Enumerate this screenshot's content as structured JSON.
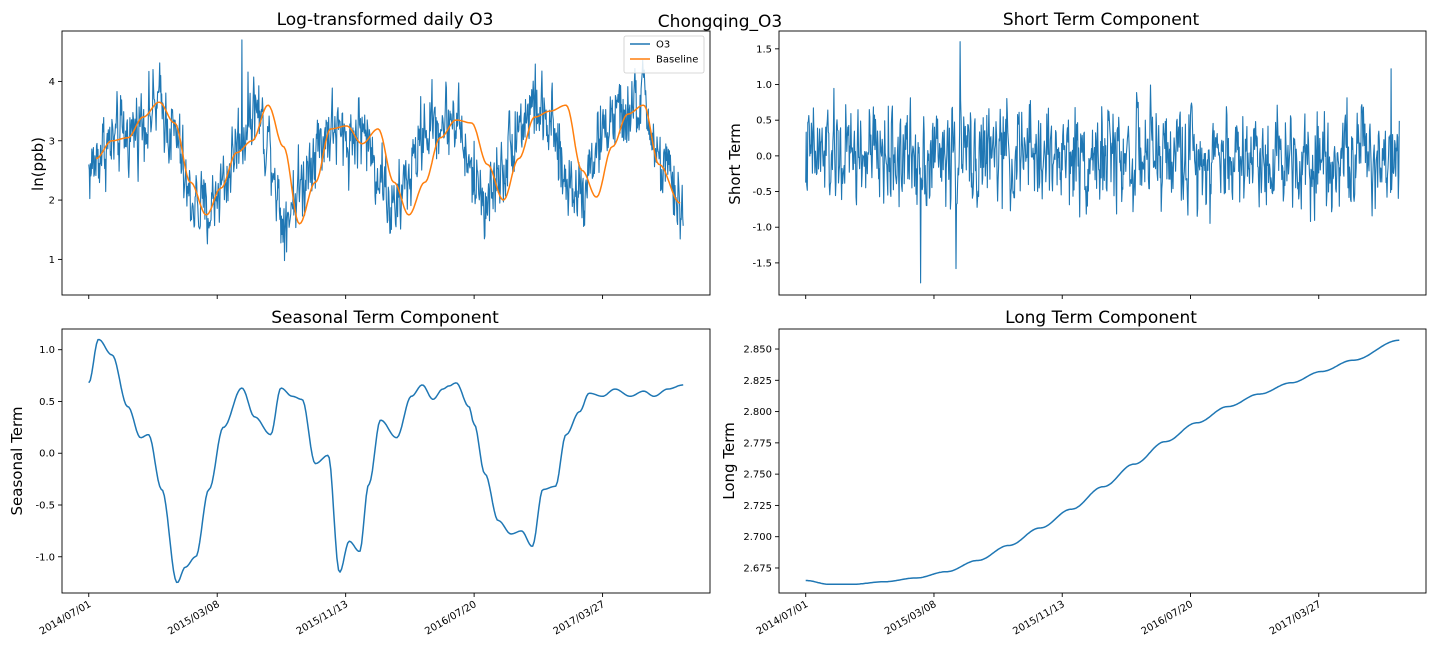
{
  "suptitle": "Chongqing_O3",
  "x_ticks": [
    "2014/07/01",
    "2015/03/08",
    "2015/11/13",
    "2016/07/20",
    "2017/03/27"
  ],
  "colors": {
    "o3": "#1f77b4",
    "baseline": "#ff7f0e"
  },
  "chart_data": [
    {
      "type": "line",
      "title": "Log-transformed daily O3",
      "ylabel": "ln(ppb)",
      "xlabel": "",
      "x_range": [
        "2014/07/01",
        "2017/08/31"
      ],
      "ylim": [
        0.4,
        4.85
      ],
      "y_ticks": [
        1,
        2,
        3,
        4
      ],
      "legend": {
        "placement": "top-right",
        "entries": [
          "O3",
          "Baseline"
        ]
      },
      "series": [
        {
          "name": "O3",
          "kind": "noisy_daily",
          "x": [
            "2014/07/01",
            "2014/08/01",
            "2014/09/15",
            "2014/10/20",
            "2014/11/15",
            "2014/12/15",
            "2015/01/15",
            "2015/02/15",
            "2015/03/20",
            "2015/04/20",
            "2015/05/20",
            "2015/06/15",
            "2015/07/15",
            "2015/08/15",
            "2015/09/15",
            "2015/10/15",
            "2015/11/15",
            "2015/12/15",
            "2016/01/15",
            "2016/02/15",
            "2016/03/15",
            "2016/04/15",
            "2016/05/15",
            "2016/06/15",
            "2016/07/15",
            "2016/08/15",
            "2016/09/15",
            "2016/10/15",
            "2016/11/15",
            "2016/12/15",
            "2017/01/15",
            "2017/02/15",
            "2017/03/15",
            "2017/04/15",
            "2017/05/15",
            "2017/06/15",
            "2017/07/15",
            "2017/08/31"
          ],
          "values": [
            2.5,
            2.9,
            3.1,
            3.4,
            3.6,
            3.1,
            2.0,
            1.8,
            2.3,
            3.0,
            3.6,
            3.0,
            1.7,
            2.2,
            2.9,
            3.2,
            3.0,
            3.2,
            2.5,
            1.8,
            2.4,
            3.2,
            3.3,
            3.4,
            2.4,
            2.0,
            2.6,
            3.3,
            3.6,
            3.2,
            2.3,
            2.2,
            2.9,
            3.4,
            3.4,
            3.7,
            2.6,
            1.9
          ],
          "spread": 0.45,
          "peak": {
            "x": "2015/04/25",
            "y": 4.7
          }
        },
        {
          "name": "Baseline",
          "x": [
            "2014/07/15",
            "2014/08/15",
            "2014/09/15",
            "2014/10/15",
            "2014/11/15",
            "2014/12/15",
            "2015/01/15",
            "2015/02/15",
            "2015/03/15",
            "2015/04/15",
            "2015/05/15",
            "2015/06/15",
            "2015/07/15",
            "2015/08/15",
            "2015/09/15",
            "2015/10/15",
            "2015/11/15",
            "2015/12/15",
            "2016/01/15",
            "2016/02/15",
            "2016/03/15",
            "2016/04/15",
            "2016/05/15",
            "2016/06/15",
            "2016/07/15",
            "2016/08/15",
            "2016/09/15",
            "2016/10/15",
            "2016/11/15",
            "2016/12/15",
            "2017/01/15",
            "2017/02/15",
            "2017/03/15",
            "2017/04/15",
            "2017/05/15",
            "2017/06/15",
            "2017/07/15",
            "2017/08/25"
          ],
          "values": [
            2.7,
            3.0,
            3.05,
            3.4,
            3.65,
            3.3,
            2.3,
            1.75,
            2.2,
            2.8,
            3.0,
            3.6,
            2.9,
            1.6,
            2.3,
            3.2,
            3.25,
            2.95,
            3.2,
            2.3,
            1.75,
            2.3,
            3.05,
            3.35,
            3.3,
            2.6,
            2.0,
            2.7,
            3.4,
            3.5,
            3.6,
            2.5,
            2.05,
            2.9,
            3.45,
            3.6,
            2.6,
            1.95
          ]
        }
      ]
    },
    {
      "type": "line",
      "title": "Short Term Component",
      "ylabel": "Short Term",
      "xlabel": "",
      "x_range": [
        "2014/07/01",
        "2017/08/31"
      ],
      "ylim": [
        -1.95,
        1.75
      ],
      "y_ticks": [
        -1.5,
        -1.0,
        -0.5,
        0.0,
        0.5,
        1.0,
        1.5
      ],
      "series": [
        {
          "name": "",
          "kind": "noisy_daily",
          "x": [
            "2014/07/01",
            "2017/08/31"
          ],
          "values": [
            0.0,
            0.0
          ],
          "spread": 0.5,
          "spikes": [
            {
              "x": "2015/04/28",
              "y": 1.6
            },
            {
              "x": "2015/02/10",
              "y": -1.78
            },
            {
              "x": "2015/04/20",
              "y": -1.58
            },
            {
              "x": "2017/08/15",
              "y": 1.22
            }
          ]
        }
      ]
    },
    {
      "type": "line",
      "title": "Seasonal Term Component",
      "ylabel": "Seasonal Term",
      "xlabel": "",
      "x_range": [
        "2014/07/01",
        "2017/08/31"
      ],
      "ylim": [
        -1.35,
        1.2
      ],
      "y_ticks": [
        -1.0,
        -0.5,
        0.0,
        0.5,
        1.0
      ],
      "series": [
        {
          "name": "",
          "x": [
            "2014/07/01",
            "2014/07/20",
            "2014/08/15",
            "2014/09/15",
            "2014/10/10",
            "2014/10/25",
            "2014/11/20",
            "2014/12/20",
            "2015/01/05",
            "2015/01/25",
            "2015/02/20",
            "2015/03/20",
            "2015/04/25",
            "2015/05/20",
            "2015/06/20",
            "2015/07/10",
            "2015/08/01",
            "2015/08/20",
            "2015/09/15",
            "2015/10/10",
            "2015/11/01",
            "2015/11/20",
            "2015/12/10",
            "2015/12/28",
            "2016/01/20",
            "2016/02/20",
            "2016/03/20",
            "2016/04/10",
            "2016/05/01",
            "2016/05/20",
            "2016/06/01",
            "2016/06/15",
            "2016/07/10",
            "2016/07/20",
            "2016/08/10",
            "2016/09/05",
            "2016/09/30",
            "2016/10/20",
            "2016/11/10",
            "2016/12/01",
            "2016/12/25",
            "2017/01/15",
            "2017/02/10",
            "2017/03/01",
            "2017/03/27",
            "2017/04/20",
            "2017/05/20",
            "2017/06/15",
            "2017/07/05",
            "2017/08/01",
            "2017/08/31"
          ],
          "values": [
            0.68,
            1.1,
            0.95,
            0.45,
            0.15,
            0.18,
            -0.35,
            -1.25,
            -1.1,
            -1.0,
            -0.35,
            0.25,
            0.63,
            0.35,
            0.18,
            0.63,
            0.55,
            0.52,
            -0.1,
            -0.02,
            -1.15,
            -0.85,
            -0.95,
            -0.3,
            0.32,
            0.15,
            0.55,
            0.66,
            0.52,
            0.62,
            0.65,
            0.68,
            0.45,
            0.28,
            -0.2,
            -0.65,
            -0.78,
            -0.75,
            -0.9,
            -0.35,
            -0.32,
            0.18,
            0.4,
            0.58,
            0.55,
            0.62,
            0.55,
            0.6,
            0.55,
            0.62,
            0.66
          ]
        }
      ]
    },
    {
      "type": "line",
      "title": "Long Term Component",
      "ylabel": "Long Term",
      "xlabel": "",
      "x_range": [
        "2014/07/01",
        "2017/08/31"
      ],
      "ylim": [
        2.655,
        2.866
      ],
      "y_ticks": [
        2.675,
        2.7,
        2.725,
        2.75,
        2.775,
        2.8,
        2.825,
        2.85
      ],
      "series": [
        {
          "name": "",
          "x": [
            "2014/07/01",
            "2014/08/15",
            "2014/10/01",
            "2014/12/01",
            "2015/02/01",
            "2015/04/01",
            "2015/06/01",
            "2015/08/01",
            "2015/10/01",
            "2015/12/01",
            "2016/02/01",
            "2016/04/01",
            "2016/06/01",
            "2016/08/01",
            "2016/10/01",
            "2016/12/01",
            "2017/02/01",
            "2017/04/01",
            "2017/06/01",
            "2017/08/31"
          ],
          "values": [
            2.665,
            2.662,
            2.662,
            2.664,
            2.667,
            2.672,
            2.681,
            2.693,
            2.707,
            2.722,
            2.74,
            2.758,
            2.776,
            2.791,
            2.804,
            2.814,
            2.823,
            2.832,
            2.841,
            2.857
          ]
        }
      ]
    }
  ]
}
